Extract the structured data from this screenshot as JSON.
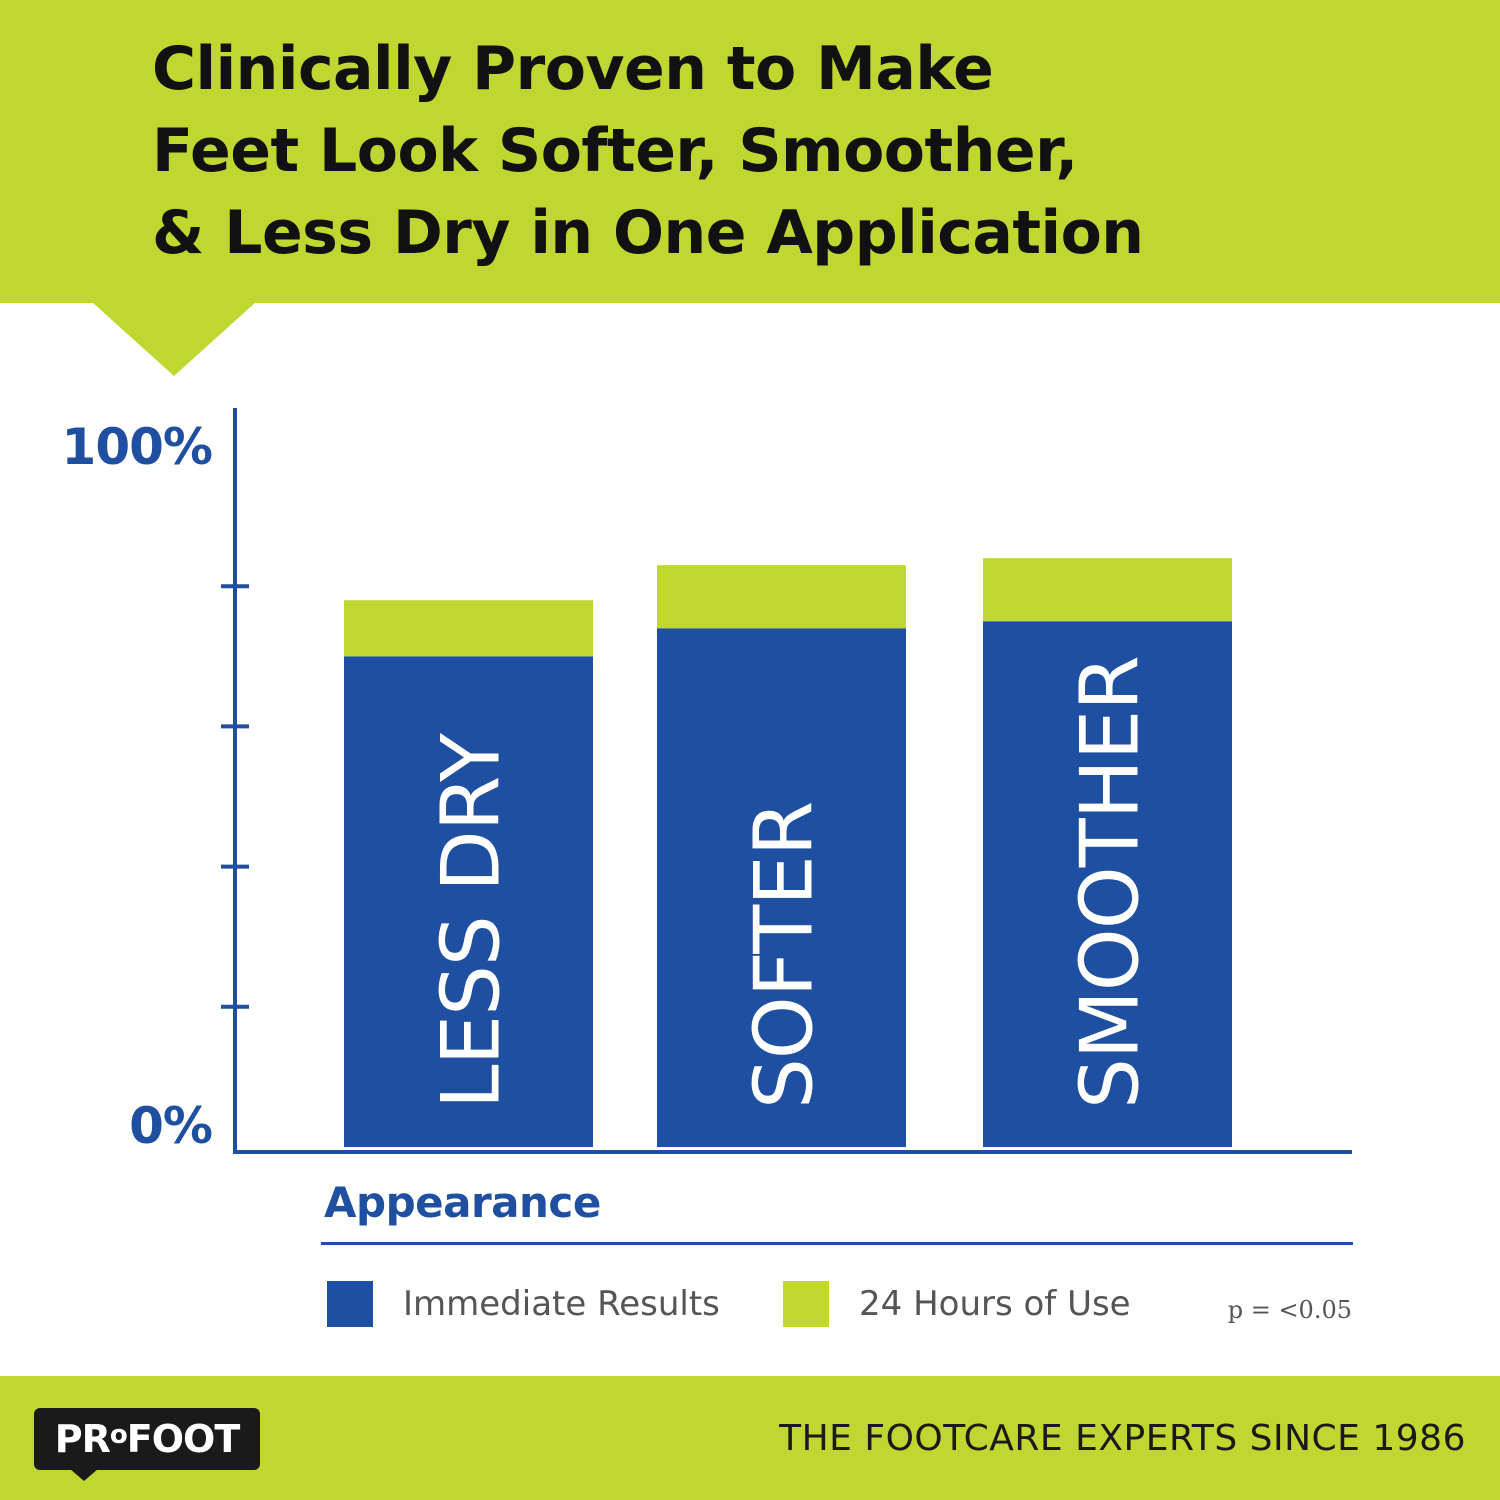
{
  "header": {
    "title_lines": [
      "Clinically Proven to Make",
      "Feet Look Softer, Smoother,",
      "& Less Dry in One Application"
    ]
  },
  "chart_data": {
    "type": "bar",
    "stacked": true,
    "categories": [
      "LESS DRY",
      "SOFTER",
      "SMOOTHER"
    ],
    "series": [
      {
        "name": "Immediate Results",
        "color": "#1f4fa0",
        "values": [
          70,
          74,
          75
        ]
      },
      {
        "name": "24 Hours of Use",
        "color": "#bfd730",
        "values": [
          8,
          9,
          9
        ]
      }
    ],
    "y_tick_labels": [
      "0%",
      "100%"
    ],
    "ylim": [
      0,
      100
    ],
    "xlabel": "Appearance",
    "category_labels_inside_bars": true,
    "grid": false,
    "legend_position": "bottom",
    "annotation": "p = <0.05"
  },
  "legend": {
    "items": [
      {
        "label": "Immediate Results",
        "color": "#1f4fa0"
      },
      {
        "label": "24 Hours of Use",
        "color": "#bfd730"
      }
    ]
  },
  "footer": {
    "logo_text": "PRoFOOT",
    "tagline": "THE FOOTCARE EXPERTS SINCE 1986"
  },
  "colors": {
    "brand_green": "#bfd730",
    "brand_blue": "#1f4fa0",
    "text_dark": "#111111"
  }
}
